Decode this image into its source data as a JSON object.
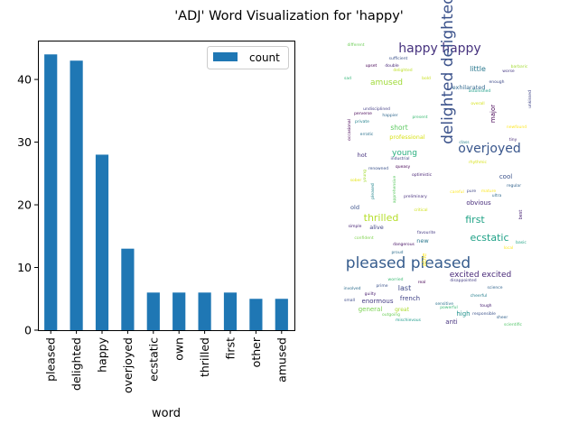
{
  "title": "'ADJ' Word Visualization for 'happy'",
  "chart_data": {
    "type": "bar",
    "xlabel": "word",
    "ylabel": "",
    "categories": [
      "pleased",
      "delighted",
      "happy",
      "overjoyed",
      "ecstatic",
      "own",
      "thrilled",
      "first",
      "other",
      "amused"
    ],
    "series": [
      {
        "name": "count",
        "values": [
          44,
          43,
          28,
          13,
          6,
          6,
          6,
          6,
          5,
          5
        ]
      }
    ],
    "ylim": [
      0,
      46.2
    ],
    "yticks": [
      0,
      10,
      20,
      30,
      40
    ],
    "bar_color": "#1f77b4",
    "legend": "top-right",
    "grid": false
  },
  "wordcloud": {
    "words": [
      {
        "text": "happy happy",
        "color": "#46327e"
      },
      {
        "text": "delighted delighted",
        "color": "#3b528b"
      },
      {
        "text": "overjoyed",
        "color": "#39568c"
      },
      {
        "text": "pleased pleased",
        "color": "#365c8d"
      },
      {
        "text": "ecstatic",
        "color": "#1fa187"
      },
      {
        "text": "thrilled",
        "color": "#b5de2b"
      },
      {
        "text": "first",
        "color": "#20a386"
      },
      {
        "text": "amused",
        "color": "#a0da39"
      },
      {
        "text": "excited excited",
        "color": "#482878"
      },
      {
        "text": "little",
        "color": "#2a788e"
      },
      {
        "text": "exhilarated",
        "color": "#31688e"
      },
      {
        "text": "young",
        "color": "#29af7f"
      },
      {
        "text": "professional",
        "color": "#d8e219"
      },
      {
        "text": "short",
        "color": "#5ec962"
      },
      {
        "text": "cool",
        "color": "#3b528b"
      },
      {
        "text": "obvious",
        "color": "#472d7b"
      },
      {
        "text": "major",
        "color": "#440154"
      },
      {
        "text": "hot",
        "color": "#46327e"
      },
      {
        "text": "last",
        "color": "#3e4989"
      },
      {
        "text": "french",
        "color": "#414487"
      },
      {
        "text": "enormous",
        "color": "#443983"
      },
      {
        "text": "general",
        "color": "#7ad151"
      },
      {
        "text": "great",
        "color": "#addc30"
      },
      {
        "text": "high",
        "color": "#21918c"
      },
      {
        "text": "anti",
        "color": "#46327e"
      },
      {
        "text": "new",
        "color": "#2a788e"
      },
      {
        "text": "alive",
        "color": "#414487"
      },
      {
        "text": "old",
        "color": "#3b528b"
      },
      {
        "text": "able",
        "color": "#fde725"
      },
      {
        "text": "different",
        "color": "#6ece58"
      },
      {
        "text": "sufficient",
        "color": "#3b528b"
      },
      {
        "text": "upset",
        "color": "#440154"
      },
      {
        "text": "double",
        "color": "#482878"
      },
      {
        "text": "delighted",
        "color": "#bddf26"
      },
      {
        "text": "bold",
        "color": "#c8e020"
      },
      {
        "text": "barbaric",
        "color": "#a5db36"
      },
      {
        "text": "worse",
        "color": "#453882"
      },
      {
        "text": "enough",
        "color": "#3e4a89"
      },
      {
        "text": "sad",
        "color": "#35b779"
      },
      {
        "text": "astonished",
        "color": "#1f9e89"
      },
      {
        "text": "overall",
        "color": "#d5e21a"
      },
      {
        "text": "undisciplined",
        "color": "#433e85"
      },
      {
        "text": "perverse",
        "color": "#440154"
      },
      {
        "text": "happier",
        "color": "#31688e"
      },
      {
        "text": "present",
        "color": "#3dbc74"
      },
      {
        "text": "private",
        "color": "#25838e"
      },
      {
        "text": "erratic",
        "color": "#2c728e"
      },
      {
        "text": "newfound",
        "color": "#fde725"
      },
      {
        "text": "tiny",
        "color": "#472c7a"
      },
      {
        "text": "class",
        "color": "#26828e"
      },
      {
        "text": "industrial",
        "color": "#3f4788"
      },
      {
        "text": "rhythmic",
        "color": "#d8e219"
      },
      {
        "text": "optimistic",
        "color": "#482475"
      },
      {
        "text": "renowned",
        "color": "#3b528b"
      },
      {
        "text": "queasy",
        "color": "#440154"
      },
      {
        "text": "sober",
        "color": "#e5e419"
      },
      {
        "text": "regular",
        "color": "#33638d"
      },
      {
        "text": "pure",
        "color": "#404688"
      },
      {
        "text": "ultra",
        "color": "#306a8e"
      },
      {
        "text": "mature",
        "color": "#fde725"
      },
      {
        "text": "preliminary",
        "color": "#472f7d"
      },
      {
        "text": "critical",
        "color": "#d0e11c"
      },
      {
        "text": "simple",
        "color": "#482475"
      },
      {
        "text": "favourite",
        "color": "#443a83"
      },
      {
        "text": "confident",
        "color": "#7fd34e"
      },
      {
        "text": "dangerous",
        "color": "#471164"
      },
      {
        "text": "proud",
        "color": "#2e6f8e"
      },
      {
        "text": "basic",
        "color": "#20a386"
      },
      {
        "text": "local",
        "color": "#fde725"
      },
      {
        "text": "worried",
        "color": "#3dbc74"
      },
      {
        "text": "real",
        "color": "#440154"
      },
      {
        "text": "involved",
        "color": "#2e6e8e"
      },
      {
        "text": "prime",
        "color": "#3b528b"
      },
      {
        "text": "disappointed",
        "color": "#433d84"
      },
      {
        "text": "science",
        "color": "#32658e"
      },
      {
        "text": "guilty",
        "color": "#481c6e"
      },
      {
        "text": "small",
        "color": "#3e4c8a"
      },
      {
        "text": "cheerful",
        "color": "#277f8e"
      },
      {
        "text": "sensitive",
        "color": "#2c728e"
      },
      {
        "text": "tough",
        "color": "#482173"
      },
      {
        "text": "powerful",
        "color": "#3aba76"
      },
      {
        "text": "outgoing",
        "color": "#6ccd5a"
      },
      {
        "text": "mischievous",
        "color": "#1e9b8a"
      },
      {
        "text": "responsible",
        "color": "#3b528b"
      },
      {
        "text": "scientific",
        "color": "#52c569"
      },
      {
        "text": "sheer",
        "color": "#33628d"
      },
      {
        "text": "best",
        "color": "#482475"
      },
      {
        "text": "pleased",
        "color": "#24868e"
      },
      {
        "text": "occasional",
        "color": "#440154"
      },
      {
        "text": "unkissed",
        "color": "#404588"
      },
      {
        "text": "apprehensive",
        "color": "#5ec962"
      },
      {
        "text": "careful",
        "color": "#fde725"
      },
      {
        "text": "young",
        "color": "#a5db36"
      },
      {
        "text": "absolute",
        "color": "#482878"
      }
    ]
  }
}
